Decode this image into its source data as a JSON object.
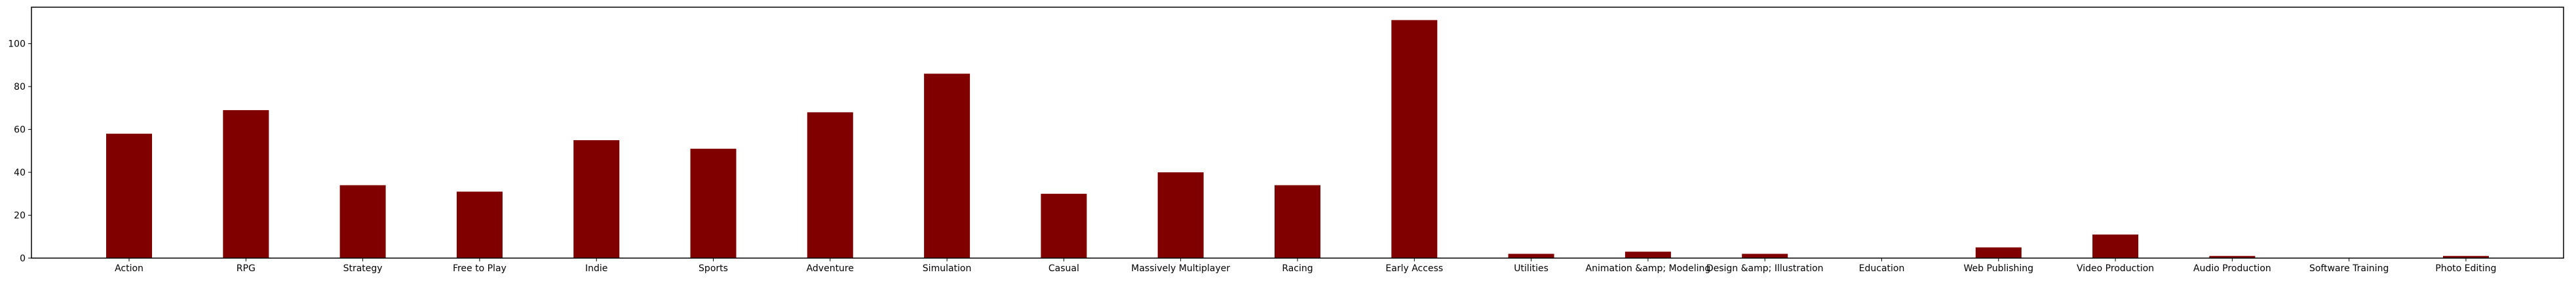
{
  "chart_data": {
    "type": "bar",
    "title": "",
    "xlabel": "",
    "ylabel": "",
    "ylim": [
      0,
      117
    ],
    "yticks": [
      0,
      20,
      40,
      60,
      80,
      100
    ],
    "grid": false,
    "legend": "none",
    "bar_color": "#800000",
    "categories": [
      "Action",
      "RPG",
      "Strategy",
      "Free to Play",
      "Indie",
      "Sports",
      "Adventure",
      "Simulation",
      "Casual",
      "Massively Multiplayer",
      "Racing",
      "Early Access",
      "Utilities",
      "Animation &amp; Modeling",
      "Design &amp; Illustration",
      "Education",
      "Web Publishing",
      "Video Production",
      "Audio Production",
      "Software Training",
      "Photo Editing"
    ],
    "values": [
      58,
      69,
      34,
      31,
      55,
      51,
      68,
      86,
      30,
      40,
      34,
      111,
      2,
      3,
      2,
      0,
      5,
      11,
      1,
      0,
      1
    ]
  }
}
